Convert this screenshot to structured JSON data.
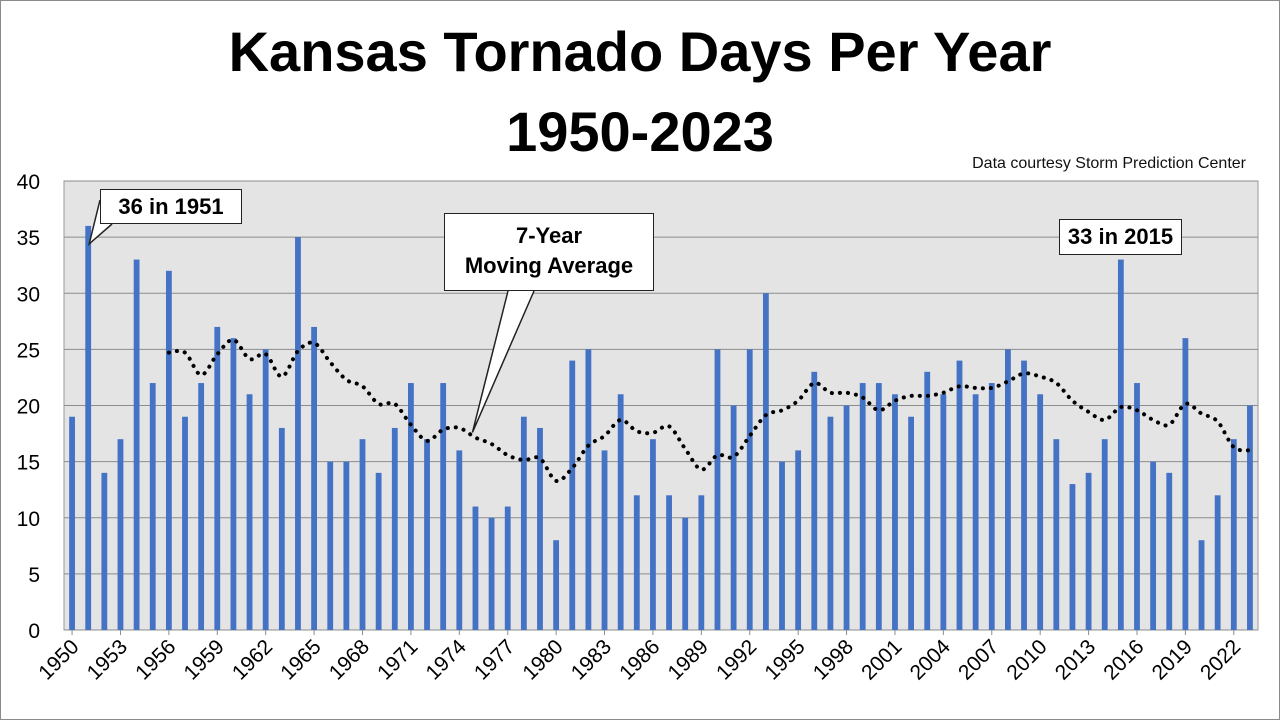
{
  "chart_data": {
    "type": "bar",
    "title_line1": "Kansas Tornado Days Per Year",
    "title_line2": "1950-2023",
    "credit": "Data courtesy Storm Prediction Center",
    "x_tick_labels": [
      "1950",
      "1953",
      "1956",
      "1959",
      "1962",
      "1965",
      "1968",
      "1971",
      "1974",
      "1977",
      "1980",
      "1983",
      "1986",
      "1989",
      "1992",
      "1995",
      "1998",
      "2001",
      "2004",
      "2007",
      "2010",
      "2013",
      "2016",
      "2019",
      "2022"
    ],
    "years": [
      1950,
      1951,
      1952,
      1953,
      1954,
      1955,
      1956,
      1957,
      1958,
      1959,
      1960,
      1961,
      1962,
      1963,
      1964,
      1965,
      1966,
      1967,
      1968,
      1969,
      1970,
      1971,
      1972,
      1973,
      1974,
      1975,
      1976,
      1977,
      1978,
      1979,
      1980,
      1981,
      1982,
      1983,
      1984,
      1985,
      1986,
      1987,
      1988,
      1989,
      1990,
      1991,
      1992,
      1993,
      1994,
      1995,
      1996,
      1997,
      1998,
      1999,
      2000,
      2001,
      2002,
      2003,
      2004,
      2005,
      2006,
      2007,
      2008,
      2009,
      2010,
      2011,
      2012,
      2013,
      2014,
      2015,
      2016,
      2017,
      2018,
      2019,
      2020,
      2021,
      2022,
      2023
    ],
    "values": [
      19,
      36,
      14,
      17,
      33,
      22,
      32,
      19,
      22,
      27,
      26,
      21,
      25,
      18,
      35,
      27,
      15,
      15,
      17,
      14,
      18,
      22,
      17,
      22,
      16,
      11,
      10,
      11,
      19,
      18,
      8,
      24,
      25,
      16,
      21,
      12,
      17,
      12,
      10,
      12,
      25,
      20,
      25,
      30,
      15,
      16,
      23,
      19,
      20,
      22,
      22,
      21,
      19,
      23,
      21,
      24,
      21,
      22,
      25,
      24,
      21,
      17,
      13,
      14,
      17,
      33,
      22,
      15,
      14,
      26,
      8,
      12,
      17,
      20
    ],
    "series": [
      {
        "name": "7-Year Moving Average",
        "type": "line",
        "style": "dotted",
        "color": "#000000"
      }
    ],
    "ylim": [
      0,
      40
    ],
    "yticks": [
      0,
      5,
      10,
      15,
      20,
      25,
      30,
      35,
      40
    ],
    "grid": true,
    "bar_color": "#4472C4",
    "annotations": [
      {
        "text": "36 in 1951",
        "year": 1951,
        "value": 36
      },
      {
        "text": "7-Year\nMoving Average",
        "target": "moving average line",
        "year": 1975
      },
      {
        "text": "33 in 2015",
        "year": 2015,
        "value": 33
      }
    ]
  }
}
